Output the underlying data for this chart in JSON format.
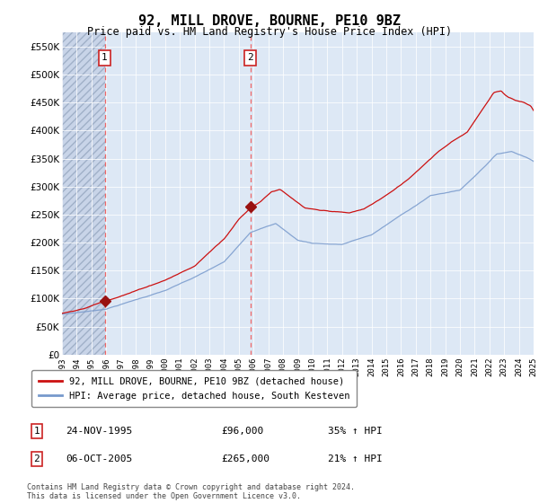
{
  "title": "92, MILL DROVE, BOURNE, PE10 9BZ",
  "subtitle": "Price paid vs. HM Land Registry's House Price Index (HPI)",
  "ylim": [
    0,
    575000
  ],
  "yticks": [
    0,
    50000,
    100000,
    150000,
    200000,
    250000,
    300000,
    350000,
    400000,
    450000,
    500000,
    550000
  ],
  "xmin_year": 1993,
  "xmax_year": 2025,
  "xtick_years": [
    1993,
    1994,
    1995,
    1996,
    1997,
    1998,
    1999,
    2000,
    2001,
    2002,
    2003,
    2004,
    2005,
    2006,
    2007,
    2008,
    2009,
    2010,
    2011,
    2012,
    2013,
    2014,
    2015,
    2016,
    2017,
    2018,
    2019,
    2020,
    2021,
    2022,
    2023,
    2024,
    2025
  ],
  "sale1_x": 1995.9,
  "sale1_price": 96000,
  "sale2_x": 2005.77,
  "sale2_price": 265000,
  "hpi_color": "#7799cc",
  "price_color": "#cc1111",
  "vline_color": "#ee6666",
  "marker_color": "#991111",
  "hatch_end": 1995.9,
  "legend_line1": "92, MILL DROVE, BOURNE, PE10 9BZ (detached house)",
  "legend_line2": "HPI: Average price, detached house, South Kesteven",
  "ann1_label": "1",
  "ann1_date": "24-NOV-1995",
  "ann1_price": "£96,000",
  "ann1_hpi": "35% ↑ HPI",
  "ann2_label": "2",
  "ann2_date": "06-OCT-2005",
  "ann2_price": "£265,000",
  "ann2_hpi": "21% ↑ HPI",
  "footer": "Contains HM Land Registry data © Crown copyright and database right 2024.\nThis data is licensed under the Open Government Licence v3.0."
}
